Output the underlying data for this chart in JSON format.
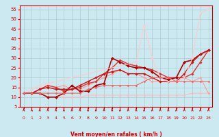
{
  "xlabel": "Vent moyen/en rafales ( km/h )",
  "bg_color": "#cce8f0",
  "grid_color": "#aacccc",
  "xlim": [
    -0.5,
    23.5
  ],
  "ylim": [
    5,
    57
  ],
  "yticks": [
    5,
    10,
    15,
    20,
    25,
    30,
    35,
    40,
    45,
    50,
    55
  ],
  "xticks": [
    0,
    1,
    2,
    3,
    4,
    5,
    6,
    7,
    8,
    9,
    10,
    11,
    12,
    13,
    14,
    15,
    16,
    17,
    18,
    19,
    20,
    21,
    22,
    23
  ],
  "lines": [
    {
      "x": [
        0,
        1,
        2,
        3,
        4,
        5,
        6,
        7,
        8,
        9,
        10,
        11,
        12,
        13,
        14,
        15,
        16,
        17,
        18,
        19,
        20,
        21,
        22,
        23
      ],
      "y": [
        12,
        12,
        12,
        10,
        10,
        10,
        10,
        10,
        11,
        11,
        11,
        11,
        11,
        11,
        11,
        11,
        11,
        11,
        11,
        11,
        11,
        12,
        12,
        12
      ],
      "color": "#ffbbbb",
      "lw": 0.8,
      "marker": "D",
      "ms": 1.5
    },
    {
      "x": [
        0,
        1,
        2,
        3,
        4,
        5,
        6,
        7,
        8,
        9,
        10,
        11,
        12,
        13,
        14,
        15,
        16,
        17,
        18,
        19,
        20,
        21,
        22,
        23
      ],
      "y": [
        12,
        12,
        14,
        16,
        15,
        16,
        14,
        14,
        16,
        18,
        20,
        22,
        24,
        22,
        22,
        20,
        18,
        18,
        18,
        18,
        20,
        18,
        20,
        12
      ],
      "color": "#ff9999",
      "lw": 0.8,
      "marker": "D",
      "ms": 1.5
    },
    {
      "x": [
        0,
        1,
        2,
        3,
        4,
        5,
        6,
        7,
        8,
        9,
        10,
        11,
        12,
        13,
        14,
        15,
        16,
        17,
        18,
        19,
        20,
        21,
        22,
        23
      ],
      "y": [
        12,
        12,
        14,
        16,
        15,
        13,
        14,
        15,
        17,
        18,
        22,
        25,
        29,
        27,
        26,
        25,
        24,
        22,
        20,
        20,
        20,
        22,
        28,
        34
      ],
      "color": "#dd3333",
      "lw": 1.0,
      "marker": "D",
      "ms": 1.8
    },
    {
      "x": [
        0,
        1,
        2,
        3,
        4,
        5,
        6,
        7,
        8,
        9,
        10,
        11,
        12,
        13,
        14,
        15,
        16,
        17,
        18,
        19,
        20,
        21,
        22,
        23
      ],
      "y": [
        12,
        12,
        12,
        10,
        10,
        12,
        16,
        13,
        13,
        16,
        17,
        30,
        28,
        26,
        25,
        25,
        23,
        20,
        19,
        20,
        28,
        29,
        32,
        34
      ],
      "color": "#aa0000",
      "lw": 1.2,
      "marker": "D",
      "ms": 2.0
    },
    {
      "x": [
        0,
        1,
        2,
        3,
        4,
        5,
        6,
        7,
        8,
        9,
        10,
        11,
        12,
        13,
        14,
        15,
        16,
        17,
        18,
        19,
        20,
        21,
        22,
        23
      ],
      "y": [
        12,
        12,
        14,
        15,
        14,
        14,
        14,
        16,
        18,
        20,
        22,
        23,
        24,
        22,
        22,
        22,
        20,
        18,
        18,
        18,
        22,
        28,
        32,
        34
      ],
      "color": "#cc1111",
      "lw": 1.0,
      "marker": "D",
      "ms": 1.8
    },
    {
      "x": [
        0,
        1,
        2,
        3,
        14,
        15,
        16,
        17,
        18,
        19,
        20,
        21,
        22,
        23
      ],
      "y": [
        12,
        14,
        16,
        17,
        28,
        47,
        30,
        20,
        18,
        18,
        20,
        30,
        53,
        55
      ],
      "color": "#ffcccc",
      "lw": 0.8,
      "marker": "D",
      "ms": 1.5
    },
    {
      "x": [
        0,
        1,
        2,
        3,
        4,
        5,
        6,
        7,
        8,
        9,
        10,
        11,
        12,
        13,
        14,
        15,
        16,
        17,
        18,
        19,
        20,
        21,
        22,
        23
      ],
      "y": [
        12,
        12,
        12,
        12,
        12,
        12,
        12,
        12,
        14,
        15,
        16,
        16,
        16,
        16,
        16,
        18,
        20,
        20,
        20,
        18,
        18,
        18,
        18,
        18
      ],
      "color": "#ee6666",
      "lw": 0.8,
      "marker": "D",
      "ms": 1.5
    }
  ],
  "tick_color": "#cc0000",
  "label_color": "#cc0000",
  "spine_color": "#cc0000",
  "arrow_color": "#cc0000"
}
